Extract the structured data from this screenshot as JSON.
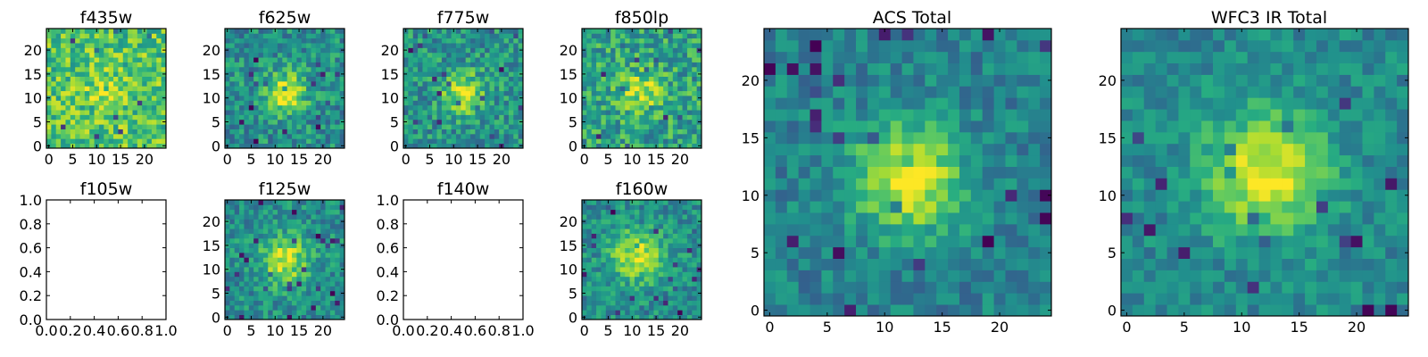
{
  "figure": {
    "background": "#ffffff",
    "colormap": "viridis"
  },
  "chart_data": [
    {
      "id": "f435w",
      "type": "heatmap",
      "title": "f435w",
      "grid": [
        25,
        25
      ],
      "center": [
        12,
        11
      ],
      "peak": 0.12,
      "sigma": 3.5,
      "baseline": 0.72,
      "noise": 0.22,
      "seed": 11,
      "xlim": [
        -0.5,
        24.5
      ],
      "ylim": [
        -0.5,
        24.5
      ],
      "xticks": [
        0,
        5,
        10,
        15,
        20
      ],
      "yticks": [
        0,
        5,
        10,
        15,
        20
      ],
      "xlabel": "",
      "ylabel": "",
      "has_image": true
    },
    {
      "id": "f625w",
      "type": "heatmap",
      "title": "f625w",
      "grid": [
        25,
        25
      ],
      "center": [
        12,
        11
      ],
      "peak": 0.45,
      "sigma": 3.2,
      "baseline": 0.5,
      "noise": 0.2,
      "seed": 23,
      "xlim": [
        -0.5,
        24.5
      ],
      "ylim": [
        -0.5,
        24.5
      ],
      "xticks": [
        0,
        5,
        10,
        15,
        20
      ],
      "yticks": [
        0,
        5,
        10,
        15,
        20
      ],
      "xlabel": "",
      "ylabel": "",
      "has_image": true
    },
    {
      "id": "f775w",
      "type": "heatmap",
      "title": "f775w",
      "grid": [
        25,
        25
      ],
      "center": [
        12,
        11
      ],
      "peak": 0.42,
      "sigma": 3.0,
      "baseline": 0.52,
      "noise": 0.2,
      "seed": 37,
      "xlim": [
        -0.5,
        24.5
      ],
      "ylim": [
        -0.5,
        24.5
      ],
      "xticks": [
        0,
        5,
        10,
        15,
        20
      ],
      "yticks": [
        0,
        5,
        10,
        15,
        20
      ],
      "xlabel": "",
      "ylabel": "",
      "has_image": true
    },
    {
      "id": "f850lp",
      "type": "heatmap",
      "title": "f850lp",
      "grid": [
        25,
        25
      ],
      "center": [
        12,
        11
      ],
      "peak": 0.3,
      "sigma": 3.2,
      "baseline": 0.58,
      "noise": 0.22,
      "seed": 41,
      "xlim": [
        -0.5,
        24.5
      ],
      "ylim": [
        -0.5,
        24.5
      ],
      "xticks": [
        0,
        5,
        10,
        15,
        20
      ],
      "yticks": [
        0,
        5,
        10,
        15,
        20
      ],
      "xlabel": "",
      "ylabel": "",
      "has_image": true
    },
    {
      "id": "acs-total",
      "type": "heatmap",
      "title": "ACS Total",
      "grid": [
        25,
        25
      ],
      "center": [
        12,
        11.5
      ],
      "peak": 0.55,
      "sigma": 3.3,
      "baseline": 0.45,
      "noise": 0.14,
      "seed": 59,
      "xlim": [
        -0.5,
        24.5
      ],
      "ylim": [
        -0.5,
        24.5
      ],
      "xticks": [
        0,
        5,
        10,
        15,
        20
      ],
      "yticks": [
        0,
        5,
        10,
        15,
        20
      ],
      "xlabel": "",
      "ylabel": "",
      "has_image": true
    },
    {
      "id": "f105w",
      "type": "heatmap",
      "title": "f105w",
      "xlim": [
        0.0,
        1.0
      ],
      "ylim": [
        0.0,
        1.0
      ],
      "xticks": [
        0.0,
        0.2,
        0.4,
        0.6,
        0.8,
        1.0
      ],
      "yticks": [
        0.0,
        0.2,
        0.4,
        0.6,
        0.8,
        1.0
      ],
      "xlabel": "",
      "ylabel": "",
      "has_image": false
    },
    {
      "id": "f125w",
      "type": "heatmap",
      "title": "f125w",
      "grid": [
        25,
        25
      ],
      "center": [
        12,
        12
      ],
      "peak": 0.45,
      "sigma": 3.4,
      "baseline": 0.5,
      "noise": 0.17,
      "seed": 67,
      "xlim": [
        -0.5,
        24.5
      ],
      "ylim": [
        -0.5,
        24.5
      ],
      "xticks": [
        0,
        5,
        10,
        15,
        20
      ],
      "yticks": [
        0,
        5,
        10,
        15,
        20
      ],
      "xlabel": "",
      "ylabel": "",
      "has_image": true
    },
    {
      "id": "f140w",
      "type": "heatmap",
      "title": "f140w",
      "xlim": [
        0.0,
        1.0
      ],
      "ylim": [
        0.0,
        1.0
      ],
      "xticks": [
        0.0,
        0.2,
        0.4,
        0.6,
        0.8,
        1.0
      ],
      "yticks": [
        0.0,
        0.2,
        0.4,
        0.6,
        0.8,
        1.0
      ],
      "xlabel": "",
      "ylabel": "",
      "has_image": false
    },
    {
      "id": "f160w",
      "type": "heatmap",
      "title": "f160w",
      "grid": [
        25,
        25
      ],
      "center": [
        11,
        13
      ],
      "peak": 0.42,
      "sigma": 3.8,
      "baseline": 0.5,
      "noise": 0.17,
      "seed": 71,
      "xlim": [
        -0.5,
        24.5
      ],
      "ylim": [
        -0.5,
        24.5
      ],
      "xticks": [
        0,
        5,
        10,
        15,
        20
      ],
      "yticks": [
        0,
        5,
        10,
        15,
        20
      ],
      "xlabel": "",
      "ylabel": "",
      "has_image": true
    },
    {
      "id": "wfc3-ir-total",
      "type": "heatmap",
      "title": "WFC3 IR Total",
      "grid": [
        25,
        25
      ],
      "center": [
        12,
        12
      ],
      "peak": 0.5,
      "sigma": 3.6,
      "baseline": 0.48,
      "noise": 0.13,
      "seed": 83,
      "xlim": [
        -0.5,
        24.5
      ],
      "ylim": [
        -0.5,
        24.5
      ],
      "xticks": [
        0,
        5,
        10,
        15,
        20
      ],
      "yticks": [
        0,
        5,
        10,
        15,
        20
      ],
      "xlabel": "",
      "ylabel": "",
      "has_image": true
    }
  ]
}
